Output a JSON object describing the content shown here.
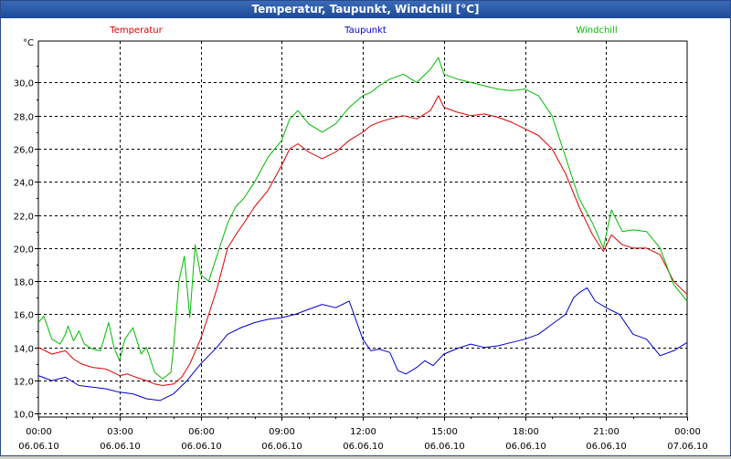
{
  "window": {
    "title": "Temperatur, Taupunkt, Windchill [°C]"
  },
  "chart_data": {
    "type": "line",
    "title": "Temperatur, Taupunkt, Windchill [°C]",
    "ylabel": "°C",
    "ylim": [
      9.8,
      32.5
    ],
    "yticks": [
      10,
      12,
      14,
      16,
      18,
      20,
      22,
      24,
      26,
      28,
      30
    ],
    "ytick_labels": [
      "10,0",
      "12,0",
      "14,0",
      "16,0",
      "18,0",
      "20,0",
      "22,0",
      "24,0",
      "26,0",
      "28,0",
      "30,0"
    ],
    "xlim": [
      0,
      24
    ],
    "xticks": [
      {
        "x": 0,
        "time": "00:00",
        "date": "06.06.10"
      },
      {
        "x": 3,
        "time": "03:00",
        "date": "06.06.10"
      },
      {
        "x": 6,
        "time": "06:00",
        "date": "06.06.10"
      },
      {
        "x": 9,
        "time": "09:00",
        "date": "06.06.10"
      },
      {
        "x": 12,
        "time": "12:00",
        "date": "06.06.10"
      },
      {
        "x": 15,
        "time": "15:00",
        "date": "06.06.10"
      },
      {
        "x": 18,
        "time": "18:00",
        "date": "06.06.10"
      },
      {
        "x": 21,
        "time": "21:00",
        "date": "06.06.10"
      },
      {
        "x": 24,
        "time": "00:00",
        "date": "07.06.10"
      }
    ],
    "grid": true,
    "series": [
      {
        "name": "Temperatur",
        "color": "#e00000",
        "x": [
          0,
          0.5,
          1,
          1.3,
          1.6,
          2,
          2.5,
          3,
          3.3,
          3.6,
          4,
          4.3,
          4.6,
          5,
          5.3,
          5.6,
          6,
          6.3,
          6.6,
          7,
          7.3,
          7.6,
          8,
          8.5,
          9,
          9.3,
          9.6,
          10,
          10.5,
          11,
          11.5,
          12,
          12.3,
          12.6,
          13,
          13.5,
          14,
          14.5,
          14.8,
          15,
          15.5,
          16,
          16.5,
          17,
          17.5,
          18,
          18.5,
          19,
          19.5,
          20,
          20.5,
          20.9,
          21.2,
          21.6,
          22,
          22.5,
          23,
          23.5,
          24
        ],
        "y": [
          14.0,
          13.6,
          13.8,
          13.3,
          13.0,
          12.8,
          12.7,
          12.3,
          12.4,
          12.2,
          12.0,
          11.8,
          11.7,
          11.8,
          12.2,
          13.0,
          14.5,
          16.0,
          17.5,
          20.0,
          20.8,
          21.5,
          22.5,
          23.5,
          25.0,
          26.0,
          26.3,
          25.8,
          25.4,
          25.8,
          26.5,
          27.0,
          27.4,
          27.6,
          27.8,
          28.0,
          27.8,
          28.3,
          29.2,
          28.5,
          28.2,
          28.0,
          28.1,
          27.9,
          27.6,
          27.2,
          26.8,
          26.0,
          24.5,
          22.5,
          20.8,
          19.8,
          20.8,
          20.2,
          20.0,
          20.0,
          19.6,
          18.0,
          17.2
        ]
      },
      {
        "name": "Taupunkt",
        "color": "#0000cc",
        "x": [
          0,
          0.5,
          1,
          1.5,
          2,
          2.5,
          3,
          3.5,
          4,
          4.5,
          5,
          5.5,
          6,
          6.3,
          6.6,
          7,
          7.5,
          8,
          8.5,
          9,
          9.5,
          10,
          10.5,
          11,
          11.5,
          12,
          12.3,
          12.6,
          13,
          13.3,
          13.6,
          14,
          14.3,
          14.6,
          15,
          15.3,
          15.6,
          16,
          16.5,
          17,
          17.5,
          18,
          18.5,
          19,
          19.5,
          19.8,
          20,
          20.3,
          20.6,
          21,
          21.5,
          22,
          22.5,
          23,
          23.5,
          24
        ],
        "y": [
          12.3,
          12.0,
          12.2,
          11.7,
          11.6,
          11.5,
          11.3,
          11.2,
          10.9,
          10.8,
          11.2,
          12.0,
          13.0,
          13.5,
          14.0,
          14.8,
          15.2,
          15.5,
          15.7,
          15.8,
          16.0,
          16.3,
          16.6,
          16.4,
          16.8,
          14.5,
          13.8,
          13.9,
          13.7,
          12.6,
          12.4,
          12.8,
          13.2,
          12.9,
          13.6,
          13.8,
          14.0,
          14.2,
          14.0,
          14.1,
          14.3,
          14.5,
          14.8,
          15.4,
          16.0,
          17.0,
          17.3,
          17.6,
          16.8,
          16.4,
          16.0,
          14.8,
          14.5,
          13.5,
          13.8,
          14.3
        ],
        "x_extra": []
      },
      {
        "name": "Windchill",
        "color": "#00bb00",
        "x": [
          0,
          0.2,
          0.5,
          0.8,
          1,
          1.1,
          1.3,
          1.5,
          1.7,
          2,
          2.3,
          2.6,
          2.8,
          3,
          3.2,
          3.5,
          3.8,
          4,
          4.3,
          4.6,
          4.9,
          5,
          5.2,
          5.4,
          5.6,
          5.8,
          6,
          6.3,
          6.6,
          7,
          7.3,
          7.6,
          8,
          8.5,
          9,
          9.3,
          9.6,
          10,
          10.5,
          11,
          11.5,
          12,
          12.3,
          12.6,
          13,
          13.5,
          14,
          14.5,
          14.8,
          15,
          15.5,
          16,
          16.5,
          17,
          17.5,
          18,
          18.5,
          19,
          19.5,
          20,
          20.5,
          20.9,
          21.2,
          21.6,
          22,
          22.5,
          23,
          23.5,
          24
        ],
        "y": [
          15.5,
          15.9,
          14.5,
          14.2,
          14.8,
          15.3,
          14.4,
          15.0,
          14.2,
          13.9,
          13.8,
          15.5,
          14.0,
          13.2,
          14.5,
          15.2,
          13.6,
          14.0,
          12.5,
          12.1,
          12.5,
          14.0,
          18.0,
          19.5,
          15.8,
          20.2,
          18.4,
          18.0,
          19.5,
          21.5,
          22.5,
          23.0,
          24.0,
          25.5,
          26.5,
          27.8,
          28.3,
          27.5,
          27.0,
          27.5,
          28.5,
          29.2,
          29.4,
          29.8,
          30.2,
          30.5,
          30.0,
          30.8,
          31.5,
          30.5,
          30.2,
          30.0,
          29.8,
          29.6,
          29.5,
          29.6,
          29.2,
          28.0,
          25.5,
          23.0,
          21.5,
          20.0,
          22.3,
          21.0,
          21.1,
          21.0,
          20.0,
          17.8,
          16.8
        ]
      }
    ]
  }
}
